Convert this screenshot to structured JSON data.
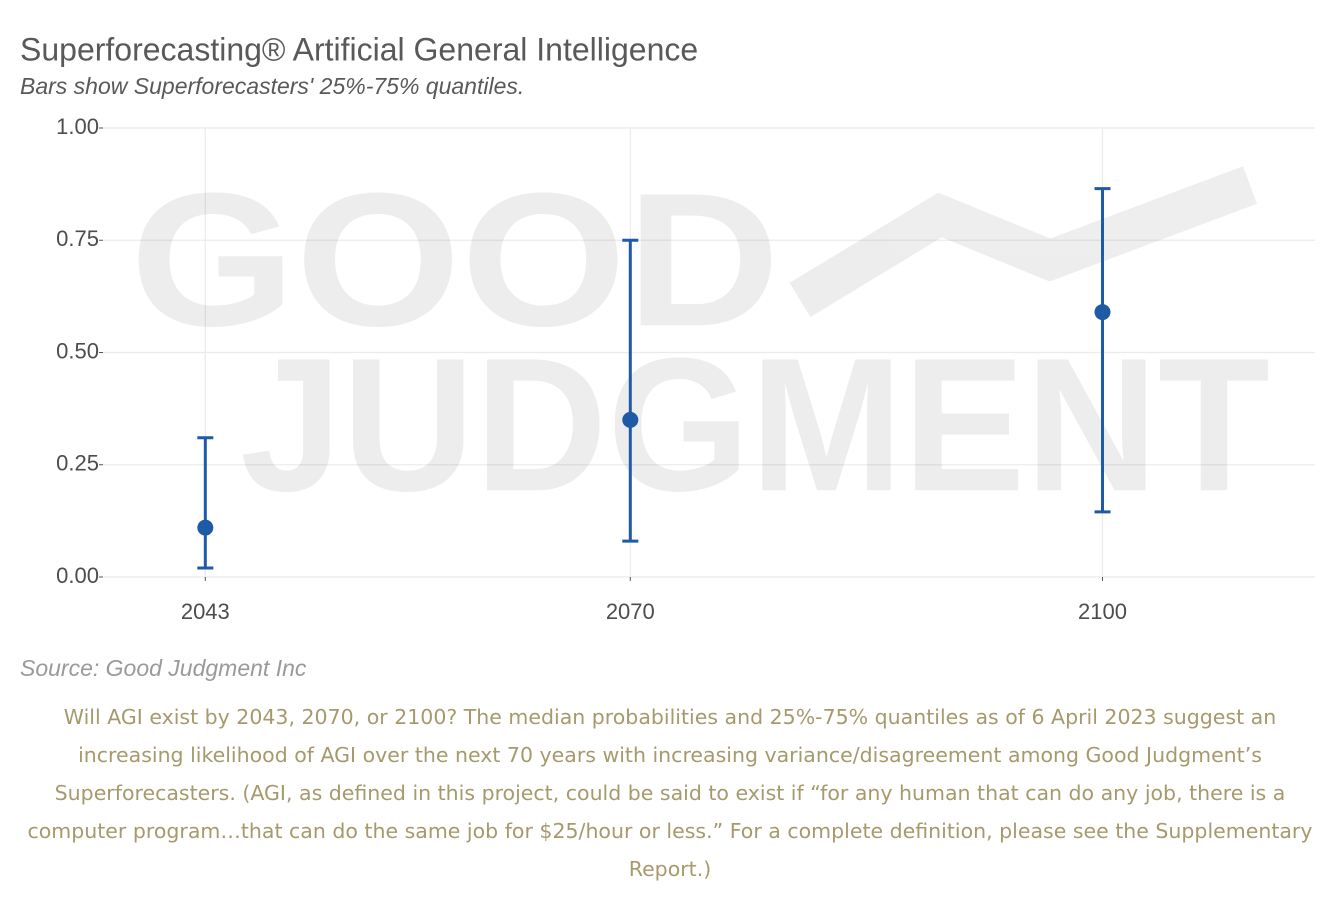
{
  "chart_data": {
    "type": "errorbar",
    "title": "Superforecasting® Artificial General Intelligence",
    "subtitle": "Bars show Superforecasters' 25%-75% quantiles.",
    "source": "Source: Good Judgment Inc",
    "watermark": [
      "GOOD",
      "JUDGMENT"
    ],
    "x": [
      2043,
      2070,
      2100
    ],
    "values": [
      0.11,
      0.35,
      0.59
    ],
    "lower": [
      0.02,
      0.08,
      0.145
    ],
    "upper": [
      0.31,
      0.75,
      0.865
    ],
    "color": "#1f5aa6",
    "xlim": [
      2036.5,
      2113.5
    ],
    "xticks": [
      2043,
      2070,
      2100
    ],
    "ylim": [
      0,
      1
    ],
    "yticks": [
      {
        "value": 0,
        "label": "0.00"
      },
      {
        "value": 0.25,
        "label": "0.25"
      },
      {
        "value": 0.5,
        "label": "0.50"
      },
      {
        "value": 0.75,
        "label": "0.75"
      },
      {
        "value": 1,
        "label": "1.00"
      }
    ],
    "grid": true
  },
  "caption": "Will AGI exist by 2043, 2070, or 2100? The median probabilities and 25%-75% quantiles as of 6 April 2023 suggest an increasing likelihood of AGI over the next 70 years with increasing variance/disagreement among Good Judgment’s Superforecasters. (AGI, as defined in this project, could be said to exist if “for any human that can do any job, there is a computer program…that can do the same job for $25/hour or less.” For a complete definition, please see the Supplementary Report.)"
}
